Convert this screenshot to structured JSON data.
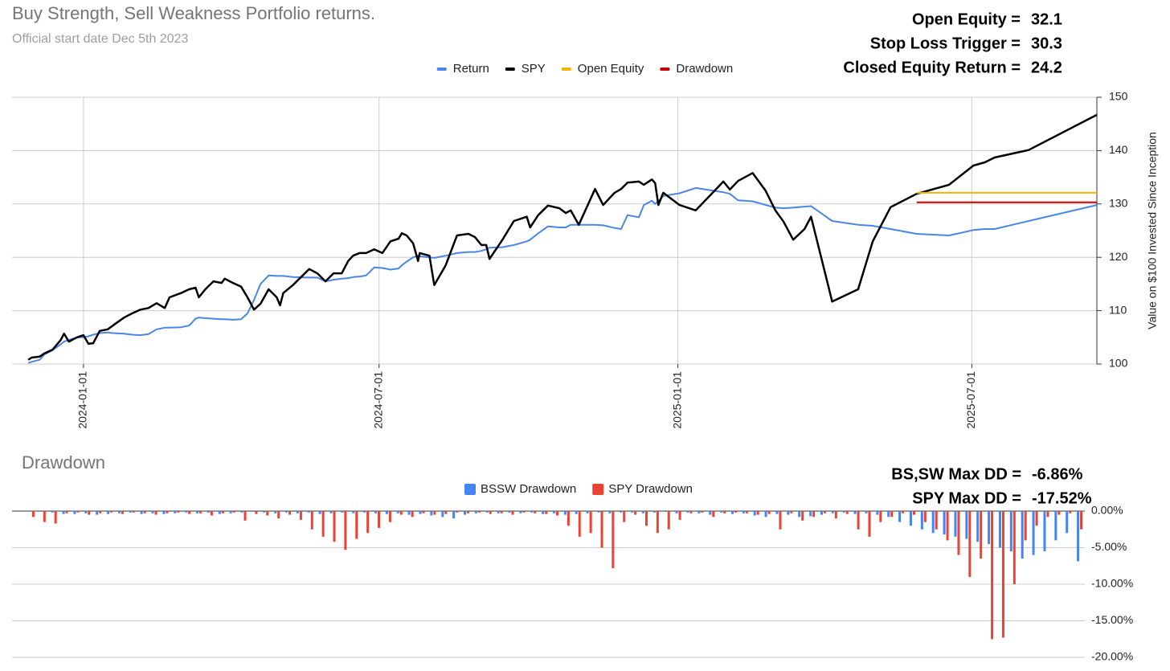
{
  "chart_data": [
    {
      "type": "line",
      "title": "Buy Strength, Sell Weakness Portfolio returns.",
      "subtitle": "Official start date Dec 5th 2023",
      "annotations": [
        {
          "label": "Open Equity =",
          "value": 32.1
        },
        {
          "label": "Stop Loss Trigger =",
          "value": 30.3
        },
        {
          "label": "Closed Equity Return =",
          "value": 24.2
        }
      ],
      "y_label": "Value on $100 Invested Since Inception",
      "yaxis_position": "right",
      "legend": "top",
      "grid": true,
      "xlim": [
        "2023-11-18",
        "2025-09-16"
      ],
      "xticks": [
        "2024-01-01",
        "2024-07-01",
        "2025-01-01",
        "2025-07-01"
      ],
      "ylim": [
        100,
        150
      ],
      "yticks": [
        100,
        110,
        120,
        130,
        140,
        150
      ],
      "x": [
        "2023-11-28",
        "2023-11-30",
        "2023-12-05",
        "2023-12-08",
        "2023-12-13",
        "2023-12-18",
        "2023-12-20",
        "2023-12-23",
        "2023-12-28",
        "2024-01-01",
        "2024-01-04",
        "2024-01-07",
        "2024-01-11",
        "2024-01-16",
        "2024-01-19",
        "2024-01-26",
        "2024-01-31",
        "2024-02-05",
        "2024-02-10",
        "2024-02-15",
        "2024-02-20",
        "2024-02-23",
        "2024-03-01",
        "2024-03-06",
        "2024-03-10",
        "2024-03-12",
        "2024-03-16",
        "2024-03-21",
        "2024-03-26",
        "2024-03-28",
        "2024-04-02",
        "2024-04-07",
        "2024-04-11",
        "2024-04-15",
        "2024-04-19",
        "2024-04-24",
        "2024-04-29",
        "2024-05-01",
        "2024-05-03",
        "2024-05-09",
        "2024-05-19",
        "2024-05-24",
        "2024-05-29",
        "2024-06-03",
        "2024-06-08",
        "2024-06-12",
        "2024-06-15",
        "2024-06-19",
        "2024-06-23",
        "2024-06-28",
        "2024-07-03",
        "2024-07-08",
        "2024-07-13",
        "2024-07-15",
        "2024-07-18",
        "2024-07-22",
        "2024-07-25",
        "2024-07-26",
        "2024-08-01",
        "2024-08-04",
        "2024-08-11",
        "2024-08-18",
        "2024-08-25",
        "2024-08-29",
        "2024-09-02",
        "2024-09-05",
        "2024-09-07",
        "2024-09-15",
        "2024-09-22",
        "2024-09-30",
        "2024-10-02",
        "2024-10-07",
        "2024-10-13",
        "2024-10-20",
        "2024-10-24",
        "2024-10-27",
        "2024-11-01",
        "2024-11-11",
        "2024-11-16",
        "2024-11-23",
        "2024-11-27",
        "2024-12-01",
        "2024-12-08",
        "2024-12-11",
        "2024-12-16",
        "2024-12-18",
        "2024-12-20",
        "2024-12-23",
        "2025-01-02",
        "2025-01-12",
        "2025-01-29",
        "2025-02-02",
        "2025-02-07",
        "2025-02-16",
        "2025-02-24",
        "2025-03-02",
        "2025-03-07",
        "2025-03-13",
        "2025-03-20",
        "2025-03-24",
        "2025-04-06",
        "2025-04-22",
        "2025-05-01",
        "2025-05-12",
        "2025-05-28",
        "2025-06-17",
        "2025-07-02",
        "2025-07-09",
        "2025-07-15",
        "2025-08-05",
        "2025-09-16"
      ],
      "series": [
        {
          "name": "Return",
          "color": "#4a86e8",
          "values": [
            100.2,
            100.4,
            100.8,
            101.8,
            102.6,
            103.7,
            104.2,
            104.5,
            105.0,
            105.0,
            105.2,
            105.5,
            105.8,
            105.9,
            105.8,
            105.7,
            105.5,
            105.4,
            105.6,
            106.5,
            106.8,
            106.8,
            106.9,
            107.2,
            108.5,
            108.7,
            108.6,
            108.5,
            108.4,
            108.4,
            108.3,
            108.4,
            109.5,
            112.0,
            115.0,
            116.6,
            116.5,
            116.5,
            116.5,
            116.3,
            116.2,
            116.2,
            115.5,
            115.8,
            116.0,
            116.1,
            116.3,
            116.4,
            116.6,
            118.1,
            118.0,
            117.7,
            117.9,
            118.5,
            119.2,
            120.0,
            120.3,
            120.2,
            120.0,
            119.9,
            120.3,
            120.8,
            121.0,
            121.0,
            121.2,
            121.5,
            121.8,
            121.9,
            122.3,
            123.0,
            123.3,
            124.5,
            125.8,
            125.6,
            125.6,
            126.1,
            126.1,
            126.1,
            126.0,
            125.5,
            125.3,
            127.9,
            127.5,
            129.8,
            130.6,
            130.0,
            130.5,
            131.5,
            132.0,
            133.0,
            132.2,
            131.9,
            130.7,
            130.5,
            129.8,
            129.3,
            129.2,
            129.3,
            129.5,
            129.6,
            126.8,
            126.1,
            125.9,
            125.3,
            124.4,
            124.1,
            125.1,
            125.3,
            125.3,
            126.8,
            129.8
          ]
        },
        {
          "name": "SPY",
          "color": "#000000",
          "values": [
            100.8,
            101.2,
            101.4,
            102.0,
            102.7,
            104.5,
            105.7,
            104.2,
            105.0,
            105.4,
            103.8,
            103.9,
            106.2,
            106.5,
            107.2,
            108.7,
            109.5,
            110.2,
            110.5,
            111.4,
            110.5,
            112.5,
            113.3,
            114.0,
            114.3,
            112.5,
            114.0,
            115.5,
            115.2,
            116.0,
            115.2,
            114.5,
            112.5,
            110.2,
            111.3,
            114.0,
            112.5,
            111.0,
            113.3,
            114.8,
            117.8,
            117.0,
            115.5,
            117.0,
            117.0,
            119.3,
            120.3,
            120.8,
            120.8,
            121.5,
            120.8,
            123.0,
            123.5,
            124.5,
            124.1,
            122.6,
            119.3,
            120.8,
            120.3,
            114.8,
            118.5,
            124.1,
            124.4,
            123.8,
            122.3,
            122.3,
            119.7,
            123.3,
            126.8,
            127.6,
            125.6,
            127.9,
            129.7,
            129.2,
            128.3,
            128.8,
            126.1,
            132.8,
            129.8,
            132.1,
            132.8,
            134.0,
            134.2,
            133.6,
            134.6,
            133.9,
            129.8,
            132.1,
            129.8,
            128.8,
            134.2,
            132.7,
            134.3,
            135.8,
            132.5,
            128.8,
            126.7,
            123.3,
            125.3,
            127.6,
            111.7,
            114.0,
            123.0,
            129.4,
            131.9,
            133.6,
            137.2,
            137.8,
            138.7,
            140.1,
            146.7
          ]
        },
        {
          "name": "Open Equity",
          "color": "#f6b400",
          "values": [
            null,
            null,
            null,
            null,
            null,
            null,
            null,
            null,
            null,
            null,
            null,
            null,
            null,
            null,
            null,
            null,
            null,
            null,
            null,
            null,
            null,
            null,
            null,
            null,
            null,
            null,
            null,
            null,
            null,
            null,
            null,
            null,
            null,
            null,
            null,
            null,
            null,
            null,
            null,
            null,
            null,
            null,
            null,
            null,
            null,
            null,
            null,
            null,
            null,
            null,
            null,
            null,
            null,
            null,
            null,
            null,
            null,
            null,
            null,
            null,
            null,
            null,
            null,
            null,
            null,
            null,
            null,
            null,
            null,
            null,
            null,
            null,
            null,
            null,
            null,
            null,
            null,
            null,
            null,
            null,
            null,
            null,
            null,
            null,
            null,
            null,
            null,
            null,
            null,
            null,
            null,
            null,
            null,
            null,
            null,
            null,
            null,
            null,
            null,
            null,
            null,
            null,
            null,
            null,
            132.1,
            132.1,
            132.1,
            132.1,
            132.1,
            132.1,
            132.1
          ]
        },
        {
          "name": "Drawdown",
          "color": "#cc0000",
          "values": [
            null,
            null,
            null,
            null,
            null,
            null,
            null,
            null,
            null,
            null,
            null,
            null,
            null,
            null,
            null,
            null,
            null,
            null,
            null,
            null,
            null,
            null,
            null,
            null,
            null,
            null,
            null,
            null,
            null,
            null,
            null,
            null,
            null,
            null,
            null,
            null,
            null,
            null,
            null,
            null,
            null,
            null,
            null,
            null,
            null,
            null,
            null,
            null,
            null,
            null,
            null,
            null,
            null,
            null,
            null,
            null,
            null,
            null,
            null,
            null,
            null,
            null,
            null,
            null,
            null,
            null,
            null,
            null,
            null,
            null,
            null,
            null,
            null,
            null,
            null,
            null,
            null,
            null,
            null,
            null,
            null,
            null,
            null,
            null,
            null,
            null,
            null,
            null,
            null,
            null,
            null,
            null,
            null,
            null,
            null,
            null,
            null,
            null,
            null,
            null,
            null,
            null,
            null,
            null,
            130.3,
            130.3,
            130.3,
            130.3,
            130.3,
            130.3,
            130.3
          ]
        }
      ]
    },
    {
      "type": "bar",
      "title": "Drawdown",
      "annotations": [
        {
          "label": "BS,SW Max DD =",
          "value": "-6.86%"
        },
        {
          "label": "SPY Max DD =",
          "value": "-17.52%"
        }
      ],
      "yaxis_position": "right",
      "legend": "top",
      "grid": true,
      "ylim": [
        -20,
        0
      ],
      "yticks": [
        {
          "value": 0,
          "label": "0.00%"
        },
        {
          "value": -5,
          "label": "-5.00%"
        },
        {
          "value": -10,
          "label": "-10.00%"
        },
        {
          "value": -15,
          "label": "-15.00%"
        },
        {
          "value": -20,
          "label": "-20.00%"
        }
      ],
      "categories": [
        null,
        null,
        null,
        null,
        null,
        null,
        null,
        null,
        null,
        null,
        null,
        null,
        null,
        null,
        null,
        null,
        null,
        null,
        null,
        null,
        null,
        null,
        null,
        null,
        null,
        null,
        null,
        null,
        null,
        null,
        null,
        null,
        null,
        null,
        null,
        null,
        null,
        null,
        null,
        null,
        null,
        null,
        null,
        null,
        null,
        null,
        null,
        null,
        null,
        null,
        null,
        null,
        null,
        null,
        null,
        null,
        null,
        null,
        null,
        null,
        null,
        null,
        null,
        null,
        null,
        null,
        null,
        null,
        null,
        null,
        null,
        null,
        null,
        null,
        null,
        null,
        null,
        null,
        null,
        null,
        null,
        null,
        null,
        null,
        null,
        null,
        null,
        null,
        null,
        null,
        null,
        null,
        null,
        null,
        null
      ],
      "series": [
        {
          "name": "BSSW Drawdown",
          "color": "#4285f4",
          "values": [
            0,
            -0.1,
            -0.2,
            -0.4,
            -0.4,
            -0.3,
            -0.5,
            -0.4,
            -0.3,
            -0.2,
            -0.4,
            -0.3,
            -0.4,
            -0.3,
            -0.2,
            -0.3,
            -0.2,
            -0.4,
            -0.3,
            -0.2,
            -0.1,
            -0.2,
            -0.3,
            -0.2,
            -0.3,
            -0.2,
            -0.4,
            -0.3,
            -0.2,
            -0.3,
            -0.2,
            -0.3,
            -0.4,
            -0.3,
            -0.5,
            -0.4,
            -0.6,
            -0.8,
            -1.0,
            -0.5,
            -0.3,
            -0.2,
            -0.3,
            -0.2,
            -0.3,
            -0.2,
            -0.4,
            -0.3,
            -0.5,
            -0.4,
            -0.3,
            -0.2,
            -0.3,
            -0.2,
            -0.2,
            -0.3,
            -0.2,
            -0.1,
            -0.3,
            -0.2,
            -0.3,
            -0.5,
            -0.2,
            -0.4,
            -0.3,
            -0.6,
            -0.8,
            -0.4,
            -0.5,
            -0.8,
            -0.7,
            -0.5,
            -0.3,
            -0.2,
            -0.4,
            -0.3,
            -0.5,
            -0.8,
            -1.5,
            -2.0,
            -2.5,
            -3.0,
            -3.2,
            -3.5,
            -3.8,
            -4.2,
            -4.5,
            -5.0,
            -5.5,
            -6.5,
            -6.0,
            -5.5,
            -4.0,
            -3.0,
            -6.86
          ]
        },
        {
          "name": "SPY Drawdown",
          "color": "#ea4335",
          "values": [
            -0.8,
            -1.5,
            -1.7,
            -0.3,
            -0.2,
            -0.5,
            -0.3,
            -0.2,
            -0.4,
            -0.2,
            -0.3,
            -0.5,
            -0.3,
            -0.2,
            -0.4,
            -0.3,
            -0.6,
            -0.3,
            -0.2,
            -1.3,
            -0.4,
            -0.6,
            -1.0,
            -0.5,
            -1.2,
            -2.5,
            -3.5,
            -4.2,
            -5.3,
            -3.8,
            -3.0,
            -2.3,
            -1.5,
            -0.5,
            -0.8,
            -0.3,
            -0.5,
            -0.4,
            -0.2,
            -0.3,
            -0.2,
            -0.4,
            -0.3,
            -0.5,
            -0.2,
            -0.3,
            -0.4,
            -0.6,
            -2.0,
            -3.5,
            -3.0,
            -5.0,
            -7.8,
            -1.5,
            -0.5,
            -2.0,
            -3.0,
            -2.5,
            -1.2,
            -0.3,
            -0.2,
            -0.8,
            -0.3,
            -0.2,
            -0.3,
            -0.5,
            -0.4,
            -2.5,
            -0.3,
            -1.3,
            -0.8,
            -0.3,
            -1.0,
            -0.4,
            -2.5,
            -3.5,
            -1.5,
            -0.8,
            -0.3,
            -0.5,
            -1.5,
            -2.5,
            -4.0,
            -6.0,
            -9.0,
            -6.5,
            -17.52,
            -17.3,
            -10.0,
            -4.0,
            -2.0,
            -0.8,
            -0.5,
            -0.3,
            -2.5
          ]
        }
      ]
    }
  ]
}
